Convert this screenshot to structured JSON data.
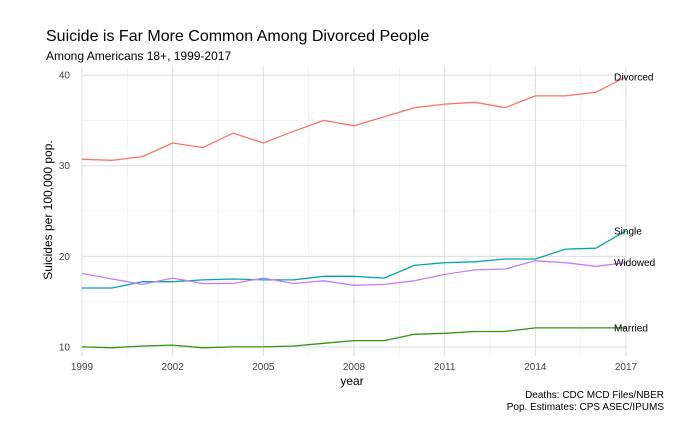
{
  "chart_data": {
    "type": "line",
    "title": "Suicide is Far More Common Among Divorced People",
    "subtitle": "Among Americans 18+, 1999-2017",
    "xlabel": "year",
    "ylabel": "Suicides per 100,000 pop.",
    "xlim": [
      1999,
      2017
    ],
    "ylim": [
      9,
      41
    ],
    "x_ticks": [
      "1999",
      "2002",
      "2005",
      "2008",
      "2011",
      "2014",
      "2017"
    ],
    "y_ticks": [
      "10",
      "20",
      "30",
      "40"
    ],
    "grid": true,
    "x": [
      1999,
      2000,
      2001,
      2002,
      2003,
      2004,
      2005,
      2006,
      2007,
      2008,
      2009,
      2010,
      2011,
      2012,
      2013,
      2014,
      2015,
      2016,
      2017
    ],
    "series": [
      {
        "name": "Divorced",
        "color": "#f8766d",
        "values": [
          30.7,
          30.6,
          31.0,
          32.5,
          32.0,
          33.6,
          32.5,
          33.8,
          35.0,
          34.4,
          35.4,
          36.4,
          36.8,
          37.0,
          36.4,
          37.7,
          37.7,
          38.1,
          39.8
        ]
      },
      {
        "name": "Single",
        "color": "#00a9a4",
        "values": [
          16.5,
          16.5,
          17.2,
          17.2,
          17.4,
          17.5,
          17.4,
          17.4,
          17.8,
          17.8,
          17.6,
          19.0,
          19.3,
          19.4,
          19.7,
          19.7,
          20.8,
          20.9,
          22.8
        ]
      },
      {
        "name": "Widowed",
        "color": "#c77cff",
        "values": [
          18.1,
          17.5,
          16.9,
          17.6,
          17.0,
          17.0,
          17.6,
          17.0,
          17.3,
          16.8,
          16.9,
          17.3,
          18.0,
          18.5,
          18.6,
          19.5,
          19.3,
          18.9,
          19.3
        ]
      },
      {
        "name": "Married",
        "color": "#31960f",
        "values": [
          10.0,
          9.9,
          10.1,
          10.2,
          9.9,
          10.0,
          10.0,
          10.1,
          10.4,
          10.7,
          10.7,
          11.4,
          11.5,
          11.7,
          11.7,
          12.1,
          12.1,
          12.1,
          12.1
        ]
      }
    ],
    "caption": [
      "Deaths: CDC MCD Files/NBER",
      "Pop. Estimates: CPS ASEC/IPUMS"
    ]
  }
}
